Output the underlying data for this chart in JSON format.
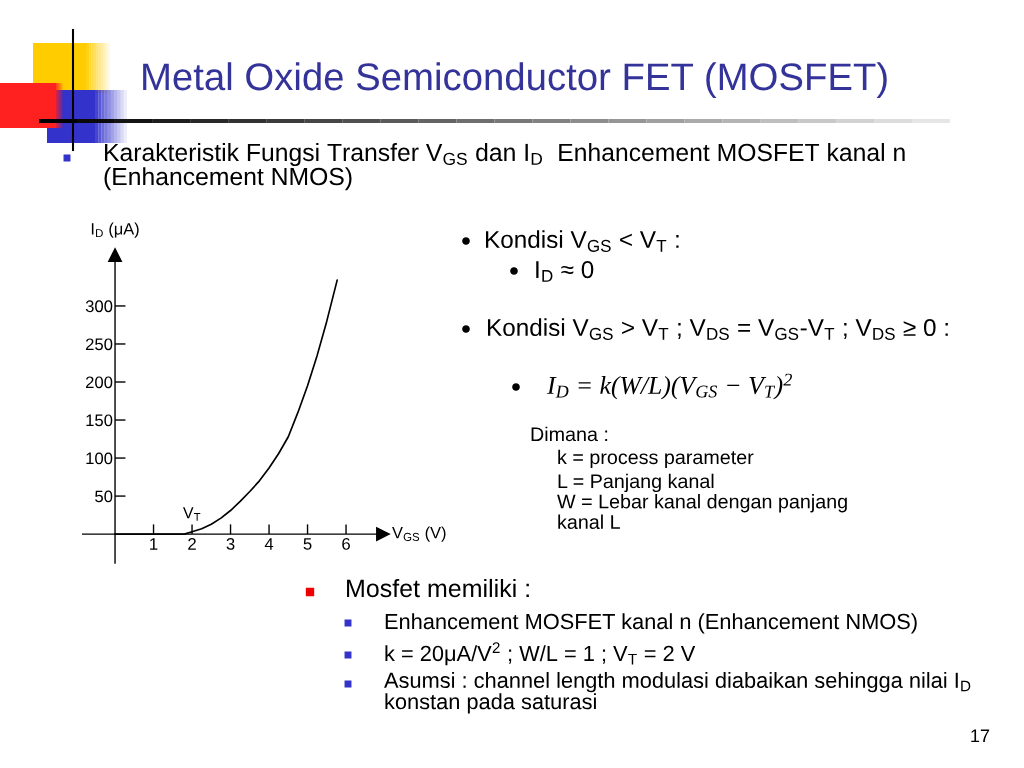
{
  "chart_data": {
    "type": "line",
    "title": "Metal Oxide Semiconductor FET (MOSFET)",
    "subtitle": "Karakteristik Fungsi Transfer V$_{GS}$ dan I$_{D}$  Enhancement MOSFET kanal n (Enhancement NMOS)",
    "xlabel": "V$_{GS}$ (V)",
    "ylabel": "I$_{D}$ (μA)",
    "x": [
      0,
      1.8,
      2,
      2.25,
      2.5,
      2.75,
      3,
      3.25,
      3.5,
      3.75,
      4,
      4.25,
      4.5,
      4.75,
      5,
      5.25,
      5.5,
      5.77
    ],
    "series": [
      {
        "color": "#000000",
        "values": [
          0,
          0,
          3,
          7,
          13,
          21,
          31,
          43,
          56,
          70,
          87,
          106,
          128,
          160,
          195,
          235,
          280,
          334
        ]
      }
    ],
    "xlim": [
      -0.84,
      6.96
    ],
    "ylim": [
      -38,
      367
    ],
    "xticks": [
      1,
      2,
      3,
      4,
      5,
      6
    ],
    "yticks": [
      50,
      100,
      150,
      200,
      250,
      300
    ],
    "annotations": [
      {
        "text": "V$_{T}$",
        "x": 2,
        "y": 0
      },
      "Kondisi V$_{GS}$ < V$_{T}$ :",
      "I$_{D}$ ≈ 0",
      "Kondisi V$_{GS}$ > V$_{T}$ ; V$_{DS}$ = V$_{GS}$-V$_{T}$ ; V$_{DS}$ ≥ 0 :",
      "I$_{D}$ = k(W/L)(V$_{GS}$ − V$_{T}$)$^{2}$",
      "Dimana :",
      "k = process parameter",
      "L = Panjang kanal",
      "W = Lebar kanal dengan panjang kanal L",
      "Mosfet memiliki :",
      "Enhancement MOSFET kanal n (Enhancement NMOS)",
      "k = 20μA/V$^{2}$ ; W/L = 1 ; V$_{T}$ = 2 V",
      "Asumsi : channel length modulasi diabaikan sehingga nilai I$_{D}$ konstan pada saturasi",
      "17"
    ]
  }
}
